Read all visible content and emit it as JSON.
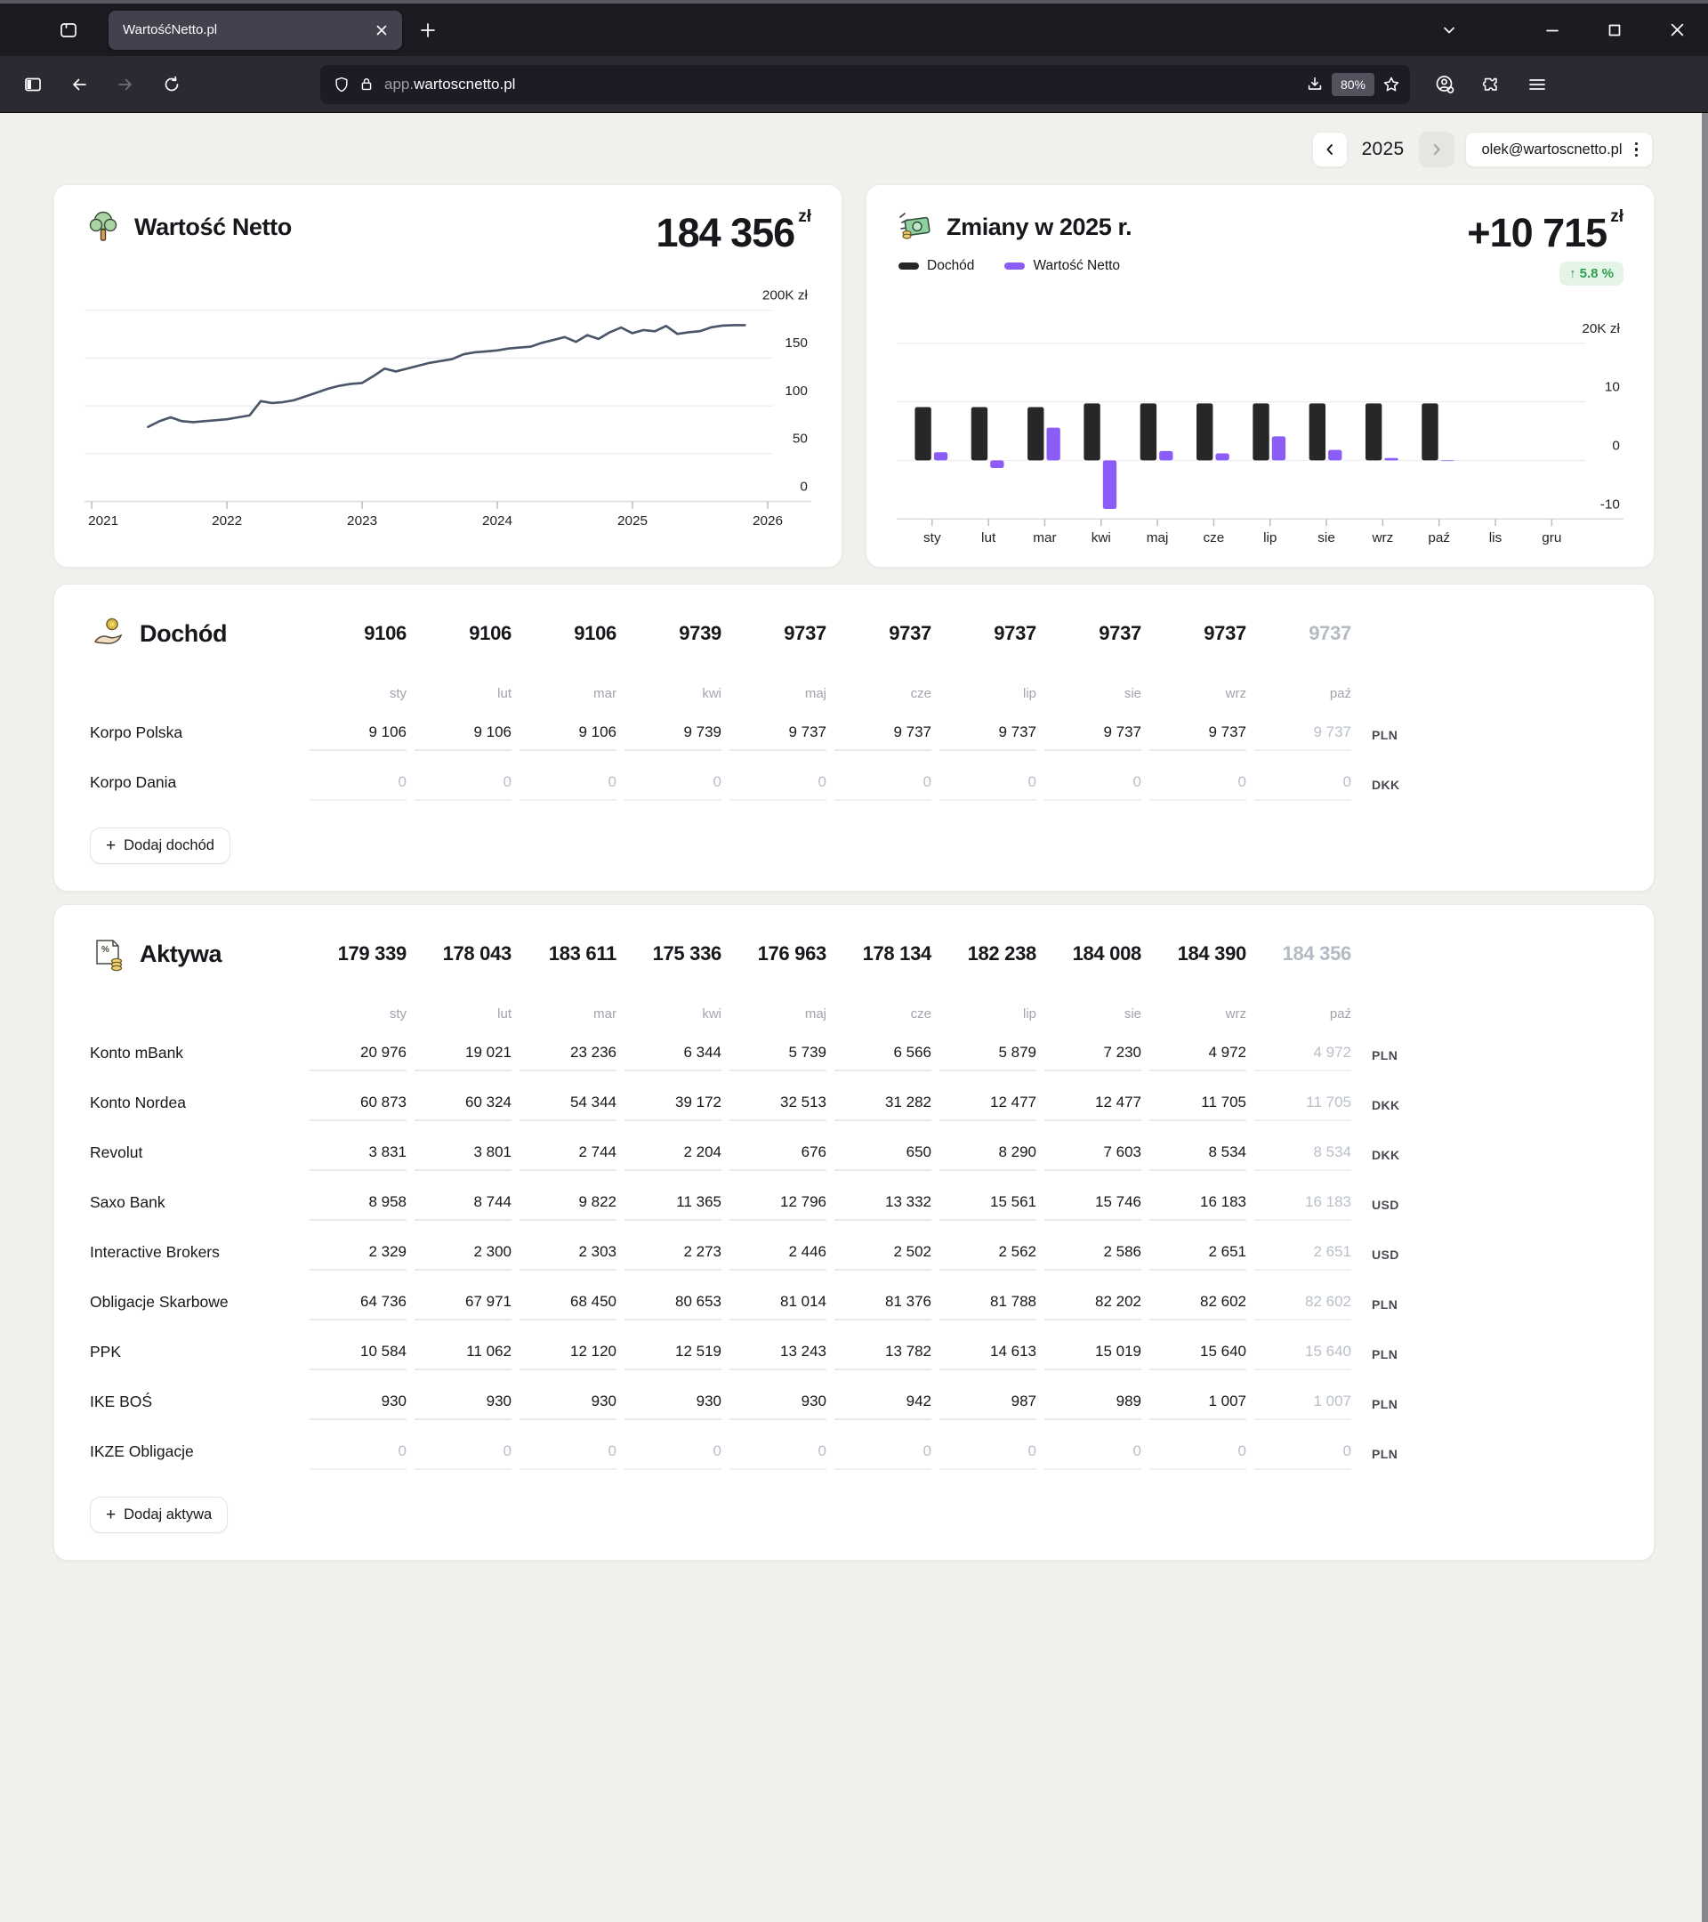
{
  "browser": {
    "tab_title": "WartośćNetto.pl",
    "url_prefix": "app.",
    "url_domain": "wartoscnetto.pl",
    "zoom_level": "80%"
  },
  "topbar": {
    "year": "2025",
    "account_email": "olek@wartoscnetto.pl"
  },
  "networth_card": {
    "title": "Wartość Netto",
    "value": "184 356",
    "currency": "zł"
  },
  "changes_card": {
    "title": "Zmiany w 2025 r.",
    "value": "+10 715",
    "currency": "zł",
    "badge_arrow": "↑",
    "badge": "5.8 %",
    "legend": [
      {
        "label": "Dochód",
        "color": "#27272a"
      },
      {
        "label": "Wartość Netto",
        "color": "#8b5cf6"
      }
    ]
  },
  "income_card": {
    "title": "Dochód",
    "months": [
      "sty",
      "lut",
      "mar",
      "kwi",
      "maj",
      "cze",
      "lip",
      "sie",
      "wrz",
      "paź"
    ],
    "totals": [
      "9106",
      "9106",
      "9106",
      "9739",
      "9737",
      "9737",
      "9737",
      "9737",
      "9737",
      "9737"
    ],
    "rows": [
      {
        "label": "Korpo Polska",
        "currency": "PLN",
        "values": [
          "9 106",
          "9 106",
          "9 106",
          "9 739",
          "9 737",
          "9 737",
          "9 737",
          "9 737",
          "9 737",
          "9 737"
        ]
      },
      {
        "label": "Korpo Dania",
        "currency": "DKK",
        "values": [
          "0",
          "0",
          "0",
          "0",
          "0",
          "0",
          "0",
          "0",
          "0",
          "0"
        ]
      }
    ],
    "add_button": "Dodaj dochód"
  },
  "assets_card": {
    "title": "Aktywa",
    "months": [
      "sty",
      "lut",
      "mar",
      "kwi",
      "maj",
      "cze",
      "lip",
      "sie",
      "wrz",
      "paź"
    ],
    "totals": [
      "179 339",
      "178 043",
      "183 611",
      "175 336",
      "176 963",
      "178 134",
      "182 238",
      "184 008",
      "184 390",
      "184 356"
    ],
    "rows": [
      {
        "label": "Konto mBank",
        "currency": "PLN",
        "values": [
          "20 976",
          "19 021",
          "23 236",
          "6 344",
          "5 739",
          "6 566",
          "5 879",
          "7 230",
          "4 972",
          "4 972"
        ]
      },
      {
        "label": "Konto Nordea",
        "currency": "DKK",
        "values": [
          "60 873",
          "60 324",
          "54 344",
          "39 172",
          "32 513",
          "31 282",
          "12 477",
          "12 477",
          "11 705",
          "11 705"
        ]
      },
      {
        "label": "Revolut",
        "currency": "DKK",
        "values": [
          "3 831",
          "3 801",
          "2 744",
          "2 204",
          "676",
          "650",
          "8 290",
          "7 603",
          "8 534",
          "8 534"
        ]
      },
      {
        "label": "Saxo Bank",
        "currency": "USD",
        "values": [
          "8 958",
          "8 744",
          "9 822",
          "11 365",
          "12 796",
          "13 332",
          "15 561",
          "15 746",
          "16 183",
          "16 183"
        ]
      },
      {
        "label": "Interactive Brokers",
        "currency": "USD",
        "values": [
          "2 329",
          "2 300",
          "2 303",
          "2 273",
          "2 446",
          "2 502",
          "2 562",
          "2 586",
          "2 651",
          "2 651"
        ]
      },
      {
        "label": "Obligacje Skarbowe",
        "currency": "PLN",
        "values": [
          "64 736",
          "67 971",
          "68 450",
          "80 653",
          "81 014",
          "81 376",
          "81 788",
          "82 202",
          "82 602",
          "82 602"
        ]
      },
      {
        "label": "PPK",
        "currency": "PLN",
        "values": [
          "10 584",
          "11 062",
          "12 120",
          "12 519",
          "13 243",
          "13 782",
          "14 613",
          "15 019",
          "15 640",
          "15 640"
        ]
      },
      {
        "label": "IKE BOŚ",
        "currency": "PLN",
        "values": [
          "930",
          "930",
          "930",
          "930",
          "930",
          "942",
          "987",
          "989",
          "1 007",
          "1 007"
        ]
      },
      {
        "label": "IKZE Obligacje",
        "currency": "PLN",
        "values": [
          "0",
          "0",
          "0",
          "0",
          "0",
          "0",
          "0",
          "0",
          "0",
          "0"
        ]
      }
    ],
    "add_button": "Dodaj aktywa"
  },
  "chart_data": [
    {
      "type": "line",
      "title": "Wartość Netto 2021–2025 (K zł)",
      "x_start_year": 2021.4167,
      "x_step_years": 0.0833,
      "values_k": [
        78,
        84,
        88,
        84,
        83,
        84,
        85,
        86,
        88,
        90,
        105,
        103,
        104,
        106,
        110,
        114,
        118,
        121,
        123,
        124,
        131,
        139,
        136,
        139,
        142,
        145,
        147,
        149,
        154,
        156,
        157,
        158,
        160,
        161,
        162,
        166,
        169,
        172,
        167,
        174,
        170,
        177,
        182,
        176,
        179.3,
        178,
        183.6,
        175.3,
        177,
        178.1,
        182.2,
        184,
        184.4,
        184.4
      ],
      "xlim": [
        2021,
        2026
      ],
      "ylim_k": [
        0,
        200
      ],
      "x_ticks": [
        "2021",
        "2022",
        "2023",
        "2024",
        "2025",
        "2026"
      ],
      "y_grid": [
        50,
        100,
        150,
        200
      ],
      "y_labels": [
        {
          "v": 200,
          "t": "200K zł"
        },
        {
          "v": 150,
          "t": "150"
        },
        {
          "v": 100,
          "t": "100"
        },
        {
          "v": 50,
          "t": "50"
        },
        {
          "v": 0,
          "t": "0"
        }
      ],
      "line_color": "#4a5568",
      "grid_on": true,
      "legend_position": "none"
    },
    {
      "type": "bar",
      "title": "Zmiany w 2025 r. (K zł)",
      "categories": [
        "sty",
        "lut",
        "mar",
        "kwi",
        "maj",
        "cze",
        "lip",
        "sie",
        "wrz",
        "paź",
        "lis",
        "gru"
      ],
      "series": [
        {
          "name": "Dochód",
          "color": "#27272a",
          "values_k": [
            9.1,
            9.1,
            9.1,
            9.74,
            9.74,
            9.74,
            9.74,
            9.74,
            9.74,
            9.74,
            null,
            null
          ]
        },
        {
          "name": "Wartość Netto",
          "color": "#8b5cf6",
          "values_k": [
            1.4,
            -1.3,
            5.6,
            -8.3,
            1.6,
            1.2,
            4.1,
            1.8,
            0.4,
            -0.1,
            null,
            null
          ]
        }
      ],
      "ylim_k": [
        -10,
        22
      ],
      "y_grid": [
        0,
        10,
        20
      ],
      "y_labels": [
        {
          "v": 20,
          "t": "20K zł"
        },
        {
          "v": 10,
          "t": "10"
        },
        {
          "v": 0,
          "t": "0"
        },
        {
          "v": -10,
          "t": "-10"
        }
      ],
      "grid_on": true,
      "legend_position": "top-left"
    }
  ]
}
